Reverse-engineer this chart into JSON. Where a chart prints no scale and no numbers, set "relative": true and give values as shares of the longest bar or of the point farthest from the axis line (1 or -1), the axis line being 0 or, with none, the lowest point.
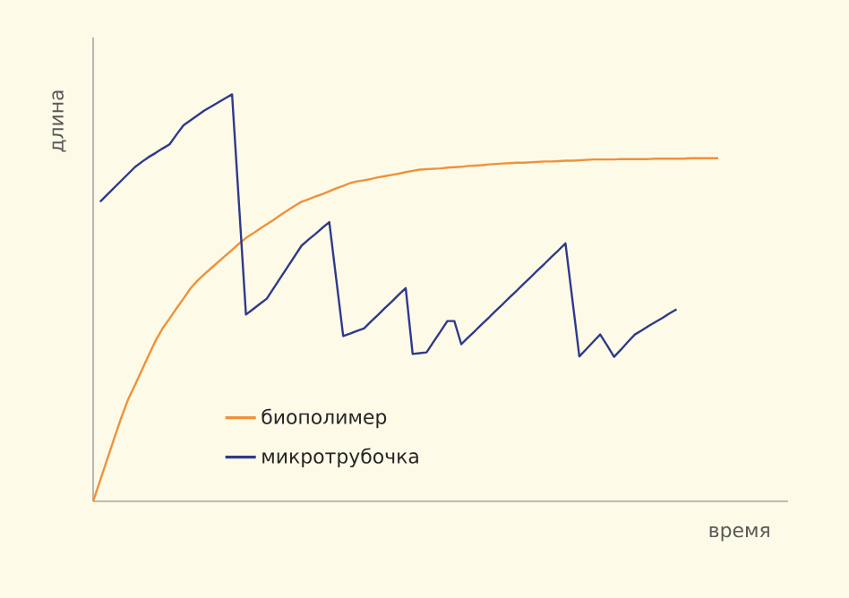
{
  "chart_data": {
    "type": "line",
    "relative": true,
    "xlabel": "время",
    "ylabel": "длина",
    "legend": "bottom",
    "categories": [
      null,
      null,
      null,
      null,
      null,
      null,
      null,
      null,
      null,
      null,
      null,
      null,
      null,
      null,
      null,
      null,
      null,
      null,
      null,
      null,
      null,
      null,
      null,
      null,
      null,
      null,
      null,
      null,
      null,
      null,
      null,
      null,
      null,
      null,
      null,
      null,
      null,
      null,
      null,
      null,
      null,
      null,
      null,
      null,
      null,
      null,
      null,
      null,
      null,
      null,
      null,
      null,
      null,
      null,
      null,
      null,
      null,
      null,
      null,
      null,
      null,
      null,
      null,
      null,
      null,
      null,
      null,
      null,
      null,
      null,
      null,
      null,
      null,
      null,
      null,
      null,
      null,
      null,
      null,
      null,
      null,
      null,
      null,
      null,
      null,
      null,
      null,
      null,
      null,
      null,
      null
    ],
    "series": [
      {
        "name": "биополимер",
        "color": "#f0913a",
        "values": [
          0,
          0.051,
          0.102,
          0.153,
          0.203,
          0.249,
          0.285,
          0.322,
          0.359,
          0.395,
          0.425,
          0.449,
          0.474,
          0.498,
          0.523,
          0.542,
          0.558,
          0.573,
          0.588,
          0.603,
          0.618,
          0.633,
          0.647,
          0.658,
          0.67,
          0.681,
          0.692,
          0.704,
          0.715,
          0.726,
          0.736,
          0.742,
          0.749,
          0.755,
          0.762,
          0.769,
          0.775,
          0.782,
          0.786,
          0.789,
          0.792,
          0.796,
          0.799,
          0.802,
          0.805,
          0.809,
          0.812,
          0.815,
          0.816,
          0.817,
          0.818,
          0.82,
          0.821,
          0.822,
          0.824,
          0.825,
          0.826,
          0.828,
          0.829,
          0.83,
          0.831,
          0.832,
          0.832,
          0.833,
          0.834,
          0.835,
          0.835,
          0.836,
          0.837,
          0.837,
          0.838,
          0.839,
          0.84,
          0.84,
          0.84,
          0.84,
          0.841,
          0.841,
          0.841,
          0.841,
          0.841,
          0.842,
          0.842,
          0.842,
          0.842,
          0.842,
          0.843,
          0.843,
          0.843,
          0.843,
          0.843
        ]
      },
      {
        "name": "микротрубочка",
        "color": "#2e3a8c",
        "values": [
          null,
          0.736,
          0.753,
          0.77,
          0.787,
          0.804,
          0.821,
          0.834,
          0.846,
          0.856,
          0.867,
          0.877,
          0.901,
          0.924,
          0.936,
          0.948,
          0.96,
          0.97,
          0.98,
          0.99,
          1,
          0.73,
          0.459,
          0.472,
          0.485,
          0.498,
          0.524,
          0.55,
          0.576,
          0.602,
          0.628,
          0.643,
          0.657,
          0.672,
          0.686,
          0.546,
          0.406,
          0.412,
          0.419,
          0.425,
          0.442,
          0.458,
          0.475,
          0.491,
          0.508,
          0.524,
          0.362,
          0.364,
          0.366,
          0.392,
          0.417,
          0.443,
          0.443,
          0.386,
          0.403,
          0.419,
          0.436,
          0.452,
          0.469,
          0.485,
          0.502,
          0.518,
          0.535,
          0.551,
          0.568,
          0.584,
          0.601,
          0.617,
          0.634,
          0.495,
          0.356,
          0.374,
          0.392,
          0.41,
          0.383,
          0.355,
          0.373,
          0.392,
          0.41,
          0.42,
          0.431,
          0.441,
          0.451,
          0.462,
          0.472,
          null,
          null,
          null,
          null,
          null,
          null
        ]
      }
    ]
  }
}
